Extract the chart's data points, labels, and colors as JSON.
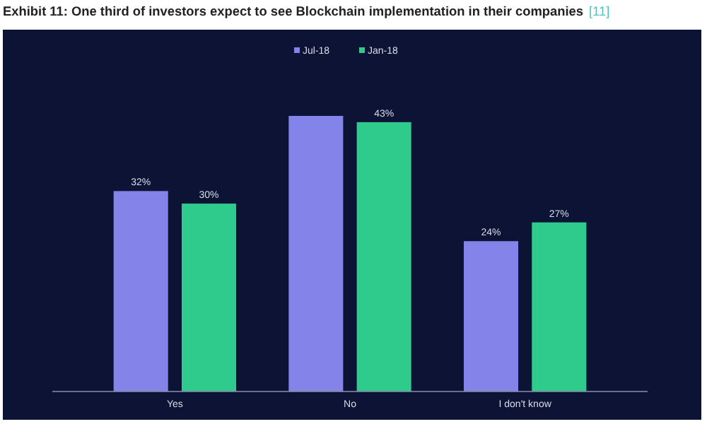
{
  "chart_data": {
    "type": "bar",
    "title": "Exhibit 11: One third of investors expect to see Blockchain implementation in their companies",
    "annotations": [
      "[11]"
    ],
    "categories": [
      "Yes",
      "No",
      "I don't know"
    ],
    "series": [
      {
        "name": "Jul-18",
        "color": "#8383ea",
        "values": [
          32,
          44,
          24
        ],
        "value_labels": [
          "32%",
          null,
          "24%"
        ]
      },
      {
        "name": "Jan-18",
        "color": "#2fcb8c",
        "values": [
          30,
          43,
          27
        ],
        "value_labels": [
          "30%",
          "43%",
          "27%"
        ]
      }
    ],
    "legend": "top",
    "grid": false
  }
}
